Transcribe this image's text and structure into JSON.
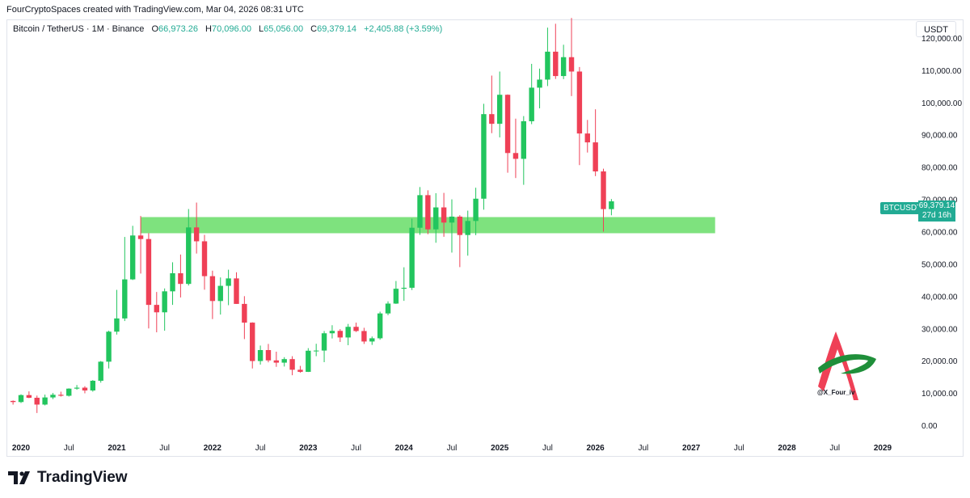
{
  "header": {
    "credit": "FourCryptoSpaces created with TradingView.com, Mar 04, 2026 08:31 UTC"
  },
  "legend": {
    "symbol": "Bitcoin / TetherUS · 1M · Binance",
    "open_key": "O",
    "open": "66,973.26",
    "high_key": "H",
    "high": "70,096.00",
    "low_key": "L",
    "low": "65,056.00",
    "close_key": "C",
    "close": "69,379.14",
    "change": "+2,405.88 (+3.59%)"
  },
  "price_axis": {
    "currency": "USDT",
    "ticker_badge": "BTCUSDT",
    "last_price": "69,379.14",
    "countdown": "27d 16h"
  },
  "branding": {
    "logo_text": "TradingView",
    "watermark_handle": "@X_Four_iv"
  },
  "colors": {
    "up": "#22c55e",
    "down": "#ef4056",
    "zone": "#7ee27e",
    "axis_text": "#131722"
  },
  "chart_data": {
    "type": "candlestick",
    "interval": "1M",
    "y_ticks": [
      "0.00",
      "10,000.00",
      "20,000.00",
      "30,000.00",
      "40,000.00",
      "50,000.00",
      "60,000.00",
      "70,000.00",
      "80,000.00",
      "90,000.00",
      "100,000.00",
      "110,000.00",
      "120,000.00"
    ],
    "y_tick_values": [
      0,
      10000,
      20000,
      30000,
      40000,
      50000,
      60000,
      70000,
      80000,
      90000,
      100000,
      110000,
      120000
    ],
    "x_ticks": [
      "2020",
      "Jul",
      "2021",
      "Jul",
      "2022",
      "Jul",
      "2023",
      "Jul",
      "2024",
      "Jul",
      "2025",
      "Jul",
      "2026",
      "Jul",
      "2027",
      "Jul",
      "2028",
      "Jul",
      "2029"
    ],
    "x_tick_dates": [
      "2020-01",
      "2020-07",
      "2021-01",
      "2021-07",
      "2022-01",
      "2022-07",
      "2023-01",
      "2023-07",
      "2024-01",
      "2024-07",
      "2025-01",
      "2025-07",
      "2026-01",
      "2026-07",
      "2027-01",
      "2027-07",
      "2028-01",
      "2028-07",
      "2029-01"
    ],
    "ylim": [
      -3500,
      125500
    ],
    "xlim": [
      "2020-01",
      "2029-01"
    ],
    "support_zone": {
      "from_date": "2021-04",
      "to_date": "2027-04",
      "low": 59500,
      "high": 64500
    },
    "candles": [
      {
        "date": "2019-12",
        "o": 7540,
        "h": 7700,
        "l": 6400,
        "c": 7200
      },
      {
        "date": "2020-01",
        "o": 7200,
        "h": 9580,
        "l": 6900,
        "c": 9350
      },
      {
        "date": "2020-02",
        "o": 9350,
        "h": 10500,
        "l": 8400,
        "c": 8520
      },
      {
        "date": "2020-03",
        "o": 8520,
        "h": 9200,
        "l": 3800,
        "c": 6410
      },
      {
        "date": "2020-04",
        "o": 6410,
        "h": 9500,
        "l": 6150,
        "c": 8620
      },
      {
        "date": "2020-05",
        "o": 8620,
        "h": 10000,
        "l": 8100,
        "c": 9450
      },
      {
        "date": "2020-06",
        "o": 9450,
        "h": 10400,
        "l": 8900,
        "c": 9140
      },
      {
        "date": "2020-07",
        "o": 9140,
        "h": 11450,
        "l": 8900,
        "c": 11350
      },
      {
        "date": "2020-08",
        "o": 11350,
        "h": 12470,
        "l": 11000,
        "c": 11650
      },
      {
        "date": "2020-09",
        "o": 11650,
        "h": 12100,
        "l": 9900,
        "c": 10780
      },
      {
        "date": "2020-10",
        "o": 10780,
        "h": 14000,
        "l": 10400,
        "c": 13790
      },
      {
        "date": "2020-11",
        "o": 13790,
        "h": 19900,
        "l": 13200,
        "c": 19700
      },
      {
        "date": "2020-12",
        "o": 19700,
        "h": 29300,
        "l": 17600,
        "c": 29000
      },
      {
        "date": "2021-01",
        "o": 29000,
        "h": 41950,
        "l": 28100,
        "c": 33100
      },
      {
        "date": "2021-02",
        "o": 33100,
        "h": 58350,
        "l": 32300,
        "c": 45200
      },
      {
        "date": "2021-03",
        "o": 45200,
        "h": 61800,
        "l": 45000,
        "c": 58800
      },
      {
        "date": "2021-04",
        "o": 58800,
        "h": 64850,
        "l": 47000,
        "c": 57700
      },
      {
        "date": "2021-05",
        "o": 57700,
        "h": 59500,
        "l": 30000,
        "c": 37300
      },
      {
        "date": "2021-06",
        "o": 37300,
        "h": 41300,
        "l": 28800,
        "c": 35000
      },
      {
        "date": "2021-07",
        "o": 35000,
        "h": 42400,
        "l": 29300,
        "c": 41500
      },
      {
        "date": "2021-08",
        "o": 41500,
        "h": 50500,
        "l": 37300,
        "c": 47100
      },
      {
        "date": "2021-09",
        "o": 47100,
        "h": 52900,
        "l": 39600,
        "c": 43800
      },
      {
        "date": "2021-10",
        "o": 43800,
        "h": 67000,
        "l": 43300,
        "c": 61300
      },
      {
        "date": "2021-11",
        "o": 61300,
        "h": 69000,
        "l": 53200,
        "c": 57000
      },
      {
        "date": "2021-12",
        "o": 57000,
        "h": 59000,
        "l": 42000,
        "c": 46200
      },
      {
        "date": "2022-01",
        "o": 46200,
        "h": 47900,
        "l": 32900,
        "c": 38500
      },
      {
        "date": "2022-02",
        "o": 38500,
        "h": 45800,
        "l": 34300,
        "c": 43200
      },
      {
        "date": "2022-03",
        "o": 43200,
        "h": 48200,
        "l": 37200,
        "c": 45500
      },
      {
        "date": "2022-04",
        "o": 45500,
        "h": 47400,
        "l": 37600,
        "c": 37600
      },
      {
        "date": "2022-05",
        "o": 37600,
        "h": 40000,
        "l": 26700,
        "c": 31800
      },
      {
        "date": "2022-06",
        "o": 31800,
        "h": 31900,
        "l": 17600,
        "c": 19900
      },
      {
        "date": "2022-07",
        "o": 19900,
        "h": 24700,
        "l": 18800,
        "c": 23300
      },
      {
        "date": "2022-08",
        "o": 23300,
        "h": 25200,
        "l": 19500,
        "c": 20100
      },
      {
        "date": "2022-09",
        "o": 20100,
        "h": 22800,
        "l": 18100,
        "c": 19400
      },
      {
        "date": "2022-10",
        "o": 19400,
        "h": 21100,
        "l": 18200,
        "c": 20500
      },
      {
        "date": "2022-11",
        "o": 20500,
        "h": 21400,
        "l": 15500,
        "c": 17200
      },
      {
        "date": "2022-12",
        "o": 17200,
        "h": 18400,
        "l": 16300,
        "c": 16550
      },
      {
        "date": "2023-01",
        "o": 16550,
        "h": 23900,
        "l": 16500,
        "c": 23100
      },
      {
        "date": "2023-02",
        "o": 23100,
        "h": 25250,
        "l": 21400,
        "c": 23150
      },
      {
        "date": "2023-03",
        "o": 23150,
        "h": 29200,
        "l": 19550,
        "c": 28500
      },
      {
        "date": "2023-04",
        "o": 28500,
        "h": 31000,
        "l": 26900,
        "c": 29250
      },
      {
        "date": "2023-05",
        "o": 29250,
        "h": 29800,
        "l": 25800,
        "c": 27200
      },
      {
        "date": "2023-06",
        "o": 27200,
        "h": 31400,
        "l": 24800,
        "c": 30500
      },
      {
        "date": "2023-07",
        "o": 30500,
        "h": 31800,
        "l": 28900,
        "c": 29200
      },
      {
        "date": "2023-08",
        "o": 29200,
        "h": 30200,
        "l": 25200,
        "c": 25950
      },
      {
        "date": "2023-09",
        "o": 25950,
        "h": 27500,
        "l": 24900,
        "c": 26950
      },
      {
        "date": "2023-10",
        "o": 26950,
        "h": 35200,
        "l": 26500,
        "c": 34650
      },
      {
        "date": "2023-11",
        "o": 34650,
        "h": 38400,
        "l": 34100,
        "c": 37700
      },
      {
        "date": "2023-12",
        "o": 37700,
        "h": 44700,
        "l": 37600,
        "c": 42300
      },
      {
        "date": "2024-01",
        "o": 42300,
        "h": 48950,
        "l": 38550,
        "c": 42600
      },
      {
        "date": "2024-02",
        "o": 42600,
        "h": 64000,
        "l": 41900,
        "c": 61200
      },
      {
        "date": "2024-03",
        "o": 61200,
        "h": 73800,
        "l": 59000,
        "c": 71300
      },
      {
        "date": "2024-04",
        "o": 71300,
        "h": 72800,
        "l": 59200,
        "c": 60700
      },
      {
        "date": "2024-05",
        "o": 60700,
        "h": 71900,
        "l": 56550,
        "c": 67500
      },
      {
        "date": "2024-06",
        "o": 67500,
        "h": 72000,
        "l": 58400,
        "c": 62800
      },
      {
        "date": "2024-07",
        "o": 62800,
        "h": 70000,
        "l": 53500,
        "c": 64650
      },
      {
        "date": "2024-08",
        "o": 64650,
        "h": 65100,
        "l": 49000,
        "c": 58950
      },
      {
        "date": "2024-09",
        "o": 58950,
        "h": 66500,
        "l": 52550,
        "c": 63300
      },
      {
        "date": "2024-10",
        "o": 63300,
        "h": 73600,
        "l": 58900,
        "c": 70200
      },
      {
        "date": "2024-11",
        "o": 70200,
        "h": 99600,
        "l": 66800,
        "c": 96400
      },
      {
        "date": "2024-12",
        "o": 96400,
        "h": 108350,
        "l": 90500,
        "c": 93400
      },
      {
        "date": "2025-01",
        "o": 93400,
        "h": 109600,
        "l": 89200,
        "c": 102400
      },
      {
        "date": "2025-02",
        "o": 102400,
        "h": 102500,
        "l": 78250,
        "c": 84350
      },
      {
        "date": "2025-03",
        "o": 84350,
        "h": 95000,
        "l": 76600,
        "c": 82550
      },
      {
        "date": "2025-04",
        "o": 82550,
        "h": 95800,
        "l": 74500,
        "c": 94200
      },
      {
        "date": "2025-05",
        "o": 94200,
        "h": 111980,
        "l": 93300,
        "c": 104600
      },
      {
        "date": "2025-06",
        "o": 104600,
        "h": 110500,
        "l": 98200,
        "c": 107100
      },
      {
        "date": "2025-07",
        "o": 107100,
        "h": 123200,
        "l": 105100,
        "c": 115750
      },
      {
        "date": "2025-08",
        "o": 115750,
        "h": 124400,
        "l": 107300,
        "c": 108200
      },
      {
        "date": "2025-09",
        "o": 108200,
        "h": 117900,
        "l": 107250,
        "c": 114050
      },
      {
        "date": "2025-10",
        "o": 114050,
        "h": 126200,
        "l": 102000,
        "c": 109600
      },
      {
        "date": "2025-11",
        "o": 109600,
        "h": 111000,
        "l": 80600,
        "c": 90400
      },
      {
        "date": "2025-12",
        "o": 90400,
        "h": 94600,
        "l": 84500,
        "c": 87650
      },
      {
        "date": "2026-01",
        "o": 87650,
        "h": 97900,
        "l": 77200,
        "c": 78650
      },
      {
        "date": "2026-02",
        "o": 78650,
        "h": 79500,
        "l": 60000,
        "c": 66973
      },
      {
        "date": "2026-03",
        "o": 66973,
        "h": 70096,
        "l": 65056,
        "c": 69379
      }
    ]
  }
}
